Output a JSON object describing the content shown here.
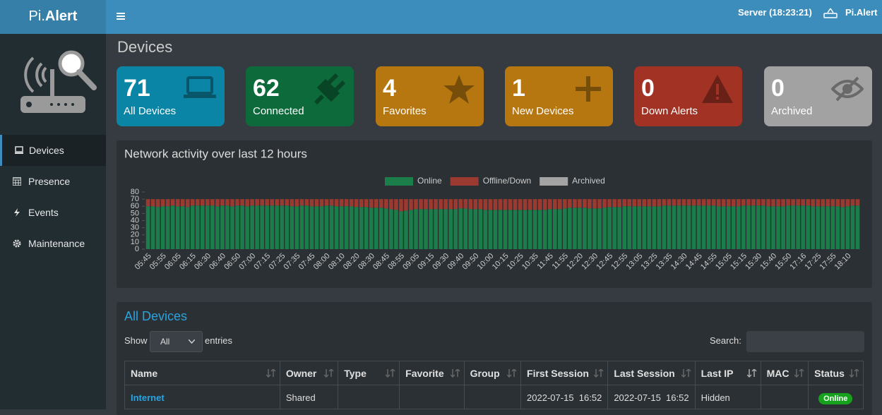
{
  "header": {
    "brand_a": "Pi.",
    "brand_b": "Alert",
    "server": "Server (18:23:21)",
    "user": "Pi.Alert"
  },
  "sidebar": [
    "Devices",
    "Presence",
    "Events",
    "Maintenance"
  ],
  "page_title": "Devices",
  "cards": [
    {
      "value": 71,
      "label": "All Devices"
    },
    {
      "value": 62,
      "label": "Connected"
    },
    {
      "value": 4,
      "label": "Favorites"
    },
    {
      "value": 1,
      "label": "New Devices"
    },
    {
      "value": 0,
      "label": "Down Alerts"
    },
    {
      "value": 0,
      "label": "Archived"
    }
  ],
  "chart_data": {
    "type": "stacked-bar",
    "title": "Network activity over last 12 hours",
    "legend": "top",
    "categories": [
      "05:45",
      null,
      null,
      "05:55",
      null,
      null,
      "06:05",
      null,
      null,
      "06:15",
      null,
      null,
      "06:30",
      null,
      null,
      "06:40",
      null,
      null,
      "06:50",
      null,
      null,
      "07:00",
      null,
      null,
      "07:15",
      null,
      null,
      "07:25",
      null,
      null,
      "07:35",
      null,
      null,
      "07:45",
      null,
      null,
      "08:00",
      null,
      null,
      "08:10",
      null,
      null,
      "08:20",
      null,
      null,
      "08:30",
      null,
      null,
      "08:45",
      null,
      null,
      "08:55",
      null,
      null,
      "09:05",
      null,
      null,
      "09:15",
      null,
      null,
      "09:30",
      null,
      null,
      "09:40",
      null,
      null,
      "09:50",
      null,
      null,
      "10:00",
      null,
      null,
      "10:15",
      null,
      null,
      "10:25",
      null,
      null,
      "10:35",
      null,
      null,
      "11:45",
      null,
      null,
      "11:55",
      null,
      null,
      "12:20",
      null,
      null,
      "12:30",
      null,
      null,
      "12:45",
      null,
      null,
      "12:55",
      null,
      null,
      "13:05",
      null,
      null,
      "13:25",
      null,
      null,
      "13:35",
      null,
      null,
      "14:30",
      null,
      null,
      "14:45",
      null,
      null,
      "14:55",
      null,
      null,
      "15:05",
      null,
      null,
      "15:15",
      null,
      null,
      "15:30",
      null,
      null,
      "15:40",
      null,
      null,
      "15:50",
      null,
      null,
      "17:16",
      null,
      null,
      "17:25",
      null,
      null,
      "17:55",
      null,
      null,
      "18:10",
      null,
      null
    ],
    "series": [
      {
        "name": "Online",
        "color": "#1b7d4a",
        "values": [
          60,
          60,
          59,
          60,
          60,
          61,
          60,
          60,
          59,
          61,
          61,
          61,
          61,
          61,
          60,
          61,
          61,
          60,
          61,
          61,
          60,
          61,
          61,
          61,
          61,
          61,
          61,
          61,
          61,
          60,
          60,
          61,
          61,
          60,
          60,
          60,
          61,
          61,
          60,
          60,
          60,
          60,
          59,
          59,
          59,
          58,
          58,
          58,
          57,
          56,
          55,
          53,
          54,
          55,
          56,
          56,
          56,
          56,
          56,
          56,
          56,
          56,
          56,
          57,
          57,
          56,
          56,
          56,
          55,
          55,
          55,
          55,
          55,
          55,
          55,
          55,
          55,
          55,
          55,
          55,
          55,
          56,
          56,
          56,
          57,
          58,
          58,
          58,
          58,
          57,
          57,
          57,
          58,
          59,
          59,
          59,
          60,
          60,
          60,
          60,
          60,
          60,
          60,
          60,
          61,
          61,
          61,
          61,
          61,
          61,
          61,
          61,
          61,
          61,
          61,
          60,
          60,
          60,
          60,
          60,
          61,
          61,
          61,
          61,
          61,
          60,
          60,
          60,
          60,
          61,
          61,
          61,
          61,
          61,
          60,
          60,
          60,
          60,
          60,
          60,
          59,
          60,
          61,
          61
        ]
      },
      {
        "name": "Offline/Down",
        "color": "#9b3a31",
        "values": [
          10,
          10,
          11,
          10,
          10,
          9,
          10,
          10,
          11,
          9,
          9,
          9,
          9,
          9,
          10,
          9,
          9,
          10,
          9,
          9,
          10,
          9,
          9,
          9,
          9,
          9,
          9,
          9,
          9,
          10,
          10,
          9,
          9,
          10,
          10,
          10,
          9,
          9,
          10,
          10,
          10,
          10,
          11,
          11,
          11,
          12,
          12,
          12,
          13,
          14,
          15,
          17,
          16,
          15,
          14,
          14,
          14,
          14,
          14,
          14,
          14,
          14,
          14,
          13,
          13,
          14,
          14,
          14,
          15,
          15,
          15,
          15,
          15,
          15,
          15,
          15,
          15,
          15,
          15,
          15,
          15,
          14,
          14,
          14,
          13,
          12,
          12,
          12,
          12,
          13,
          13,
          13,
          12,
          11,
          11,
          11,
          10,
          10,
          10,
          10,
          10,
          10,
          10,
          10,
          9,
          9,
          9,
          9,
          9,
          9,
          9,
          9,
          9,
          9,
          9,
          10,
          10,
          10,
          10,
          10,
          9,
          9,
          9,
          9,
          9,
          10,
          10,
          10,
          10,
          9,
          9,
          9,
          9,
          9,
          10,
          10,
          10,
          10,
          10,
          10,
          11,
          10,
          9,
          9
        ]
      },
      {
        "name": "Archived",
        "color": "#a3a3a3",
        "values": [
          0,
          0,
          0,
          0,
          0,
          0,
          0,
          0,
          0,
          0,
          0,
          0,
          0,
          0,
          0,
          0,
          0,
          0,
          0,
          0,
          0,
          0,
          0,
          0,
          0,
          0,
          0,
          0,
          0,
          0,
          0,
          0,
          0,
          0,
          0,
          0,
          0,
          0,
          0,
          0,
          0,
          0,
          0,
          0,
          0,
          0,
          0,
          0,
          0,
          0,
          0,
          0,
          0,
          0,
          0,
          0,
          0,
          0,
          0,
          0,
          0,
          0,
          0,
          0,
          0,
          0,
          0,
          0,
          0,
          0,
          0,
          0,
          0,
          0,
          0,
          0,
          0,
          0,
          0,
          0,
          0,
          0,
          0,
          0,
          0,
          0,
          0,
          0,
          0,
          0,
          0,
          0,
          0,
          0,
          0,
          0,
          0,
          0,
          0,
          0,
          0,
          0,
          0,
          0,
          0,
          0,
          0,
          0,
          0,
          0,
          0,
          0,
          0,
          0,
          0,
          0,
          0,
          0,
          0,
          0,
          0,
          0,
          0,
          0,
          0,
          0,
          0,
          0,
          0,
          0,
          0,
          0,
          0,
          0,
          0,
          0,
          0,
          0,
          0,
          0,
          0,
          0,
          0,
          0
        ]
      }
    ],
    "ylim": [
      0,
      80
    ],
    "yticks": [
      0,
      10,
      20,
      30,
      40,
      50,
      60,
      70,
      80
    ]
  },
  "table": {
    "title": "All Devices",
    "show": "Show",
    "length": "All",
    "entries": "entries",
    "search": "Search:",
    "columns": [
      "Name",
      "Owner",
      "Type",
      "Favorite",
      "Group",
      "First Session",
      "Last Session",
      "Last IP",
      "MAC",
      "Status"
    ],
    "rows": [
      {
        "name": "Internet",
        "owner": "Shared",
        "first_session": "2022-07-15  16:52",
        "last_session": "2022-07-15  16:52",
        "last_ip": "Hidden",
        "status": "Online"
      }
    ]
  }
}
